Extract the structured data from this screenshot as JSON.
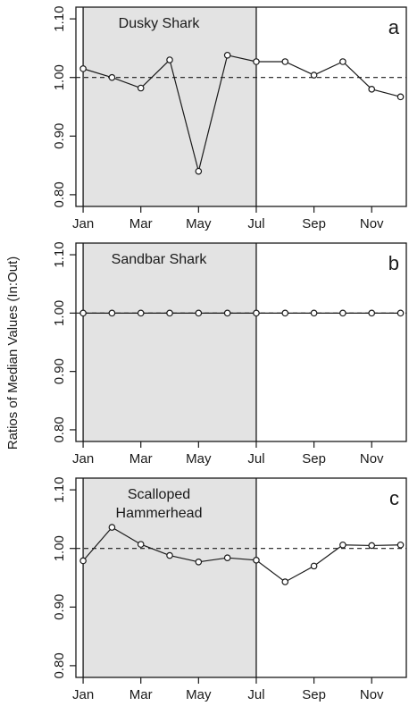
{
  "figure": {
    "ylabel": "Ratios of Median Values (In:Out)"
  },
  "chart_data": [
    {
      "type": "line",
      "panel_letter": "a",
      "species_lines": [
        "Dusky Shark"
      ],
      "xlabel": "",
      "x": [
        1,
        2,
        3,
        4,
        5,
        6,
        7,
        8,
        9,
        10,
        11,
        12
      ],
      "x_tick_positions": [
        1,
        3,
        5,
        7,
        9,
        11
      ],
      "x_tick_labels": [
        "Jan",
        "Mar",
        "May",
        "Jul",
        "Sep",
        "Nov"
      ],
      "y_ticks": [
        0.8,
        0.9,
        1.0,
        1.1
      ],
      "y_tick_labels": [
        "0.80",
        "0.90",
        "1.00",
        "1.10"
      ],
      "ylim": [
        0.78,
        1.12
      ],
      "xlim": [
        0.75,
        12.2
      ],
      "shaded_region": [
        1,
        7
      ],
      "reference_line": 1.0,
      "series": [
        {
          "values": [
            1.015,
            1.0,
            0.982,
            1.03,
            0.84,
            1.038,
            1.027,
            1.027,
            1.004,
            1.027,
            0.98,
            0.967
          ]
        }
      ]
    },
    {
      "type": "line",
      "panel_letter": "b",
      "species_lines": [
        "Sandbar Shark"
      ],
      "xlabel": "",
      "x": [
        1,
        2,
        3,
        4,
        5,
        6,
        7,
        8,
        9,
        10,
        11,
        12
      ],
      "x_tick_positions": [
        1,
        3,
        5,
        7,
        9,
        11
      ],
      "x_tick_labels": [
        "Jan",
        "Mar",
        "May",
        "Jul",
        "Sep",
        "Nov"
      ],
      "y_ticks": [
        0.8,
        0.9,
        1.0,
        1.1
      ],
      "y_tick_labels": [
        "0.80",
        "0.90",
        "1.00",
        "1.10"
      ],
      "ylim": [
        0.78,
        1.12
      ],
      "xlim": [
        0.75,
        12.2
      ],
      "shaded_region": [
        1,
        7
      ],
      "reference_line": 1.0,
      "series": [
        {
          "values": [
            1.0,
            1.0,
            1.0,
            1.0,
            1.0,
            1.0,
            1.0,
            1.0,
            1.0,
            1.0,
            1.0,
            1.0
          ]
        }
      ]
    },
    {
      "type": "line",
      "panel_letter": "c",
      "species_lines": [
        "Scalloped",
        "Hammerhead"
      ],
      "xlabel": "",
      "x": [
        1,
        2,
        3,
        4,
        5,
        6,
        7,
        8,
        9,
        10,
        11,
        12
      ],
      "x_tick_positions": [
        1,
        3,
        5,
        7,
        9,
        11
      ],
      "x_tick_labels": [
        "Jan",
        "Mar",
        "May",
        "Jul",
        "Sep",
        "Nov"
      ],
      "y_ticks": [
        0.8,
        0.9,
        1.0,
        1.1
      ],
      "y_tick_labels": [
        "0.80",
        "0.90",
        "1.00",
        "1.10"
      ],
      "ylim": [
        0.78,
        1.12
      ],
      "xlim": [
        0.75,
        12.2
      ],
      "shaded_region": [
        1,
        7
      ],
      "reference_line": 1.0,
      "series": [
        {
          "values": [
            0.979,
            1.036,
            1.007,
            0.988,
            0.977,
            0.984,
            0.98,
            0.943,
            0.97,
            1.006,
            1.005,
            1.006
          ]
        }
      ]
    }
  ]
}
